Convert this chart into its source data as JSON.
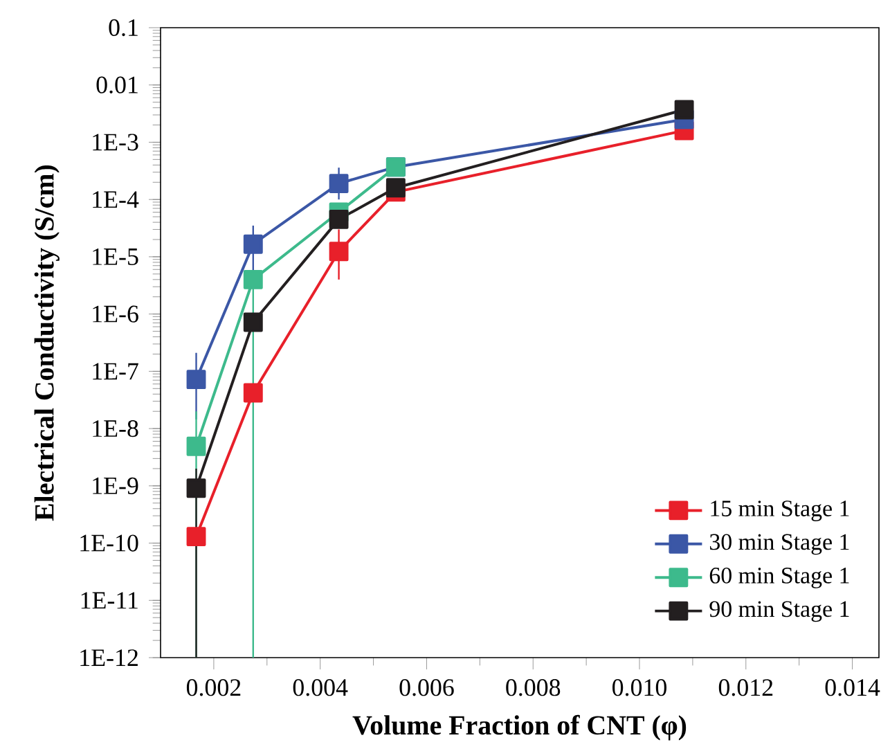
{
  "chart_data": {
    "type": "line",
    "xlabel": "Volume Fraction of CNT (φ)",
    "ylabel": "Electrical Conductivity (S/cm)",
    "x": [
      0.00167,
      0.00274,
      0.00435,
      0.00542,
      0.01084
    ],
    "series": [
      {
        "name": "15 min Stage 1",
        "color": "#e8202a",
        "values": [
          1.3e-10,
          4.2e-08,
          1.24e-05,
          0.000135,
          0.0016
        ],
        "errors": [
          null,
          null,
          [
            4e-06,
            3e-05
          ],
          null,
          null
        ]
      },
      {
        "name": "30 min Stage 1",
        "color": "#3b57a6",
        "values": [
          7.2e-08,
          1.66e-05,
          0.00019,
          0.00037,
          0.0025
        ],
        "errors": [
          [
            1.45e-08,
            2.1e-07
          ],
          [
            5e-06,
            3.5e-05
          ],
          [
            0.0001,
            0.00036
          ],
          null,
          null
        ]
      },
      {
        "name": "60 min Stage 1",
        "color": "#3dba8c",
        "values": [
          4.9e-09,
          4e-06,
          6e-05,
          0.00037,
          null
        ],
        "errors": [
          [
            1e-12,
            2e-08
          ],
          [
            1e-12,
            4e-06
          ],
          null,
          null,
          null
        ]
      },
      {
        "name": "90 min Stage 1",
        "color": "#231f20",
        "values": [
          9.1e-10,
          7.2e-07,
          4.5e-05,
          0.00016,
          0.0037
        ],
        "errors": [
          [
            1e-12,
            2e-09
          ],
          null,
          null,
          null,
          null
        ]
      }
    ],
    "xlim": [
      0.001,
      0.0145
    ],
    "xticks": [
      0.002,
      0.004,
      0.006,
      0.008,
      {
        "value": 0.01,
        "label": "0.010"
      },
      0.012,
      0.014
    ],
    "ylim": [
      1e-12,
      0.1
    ],
    "yticks": [
      {
        "value": 1e-12,
        "label": "1E-12"
      },
      {
        "value": 1e-11,
        "label": "1E-11"
      },
      {
        "value": 1e-10,
        "label": "1E-10"
      },
      {
        "value": 1e-09,
        "label": "1E-9"
      },
      {
        "value": 1e-08,
        "label": "1E-8"
      },
      {
        "value": 1e-07,
        "label": "1E-7"
      },
      {
        "value": 1e-06,
        "label": "1E-6"
      },
      {
        "value": 1e-05,
        "label": "1E-5"
      },
      {
        "value": 0.0001,
        "label": "1E-4"
      },
      {
        "value": 0.001,
        "label": "1E-3"
      },
      {
        "value": 0.01,
        "label": "0.01"
      },
      {
        "value": 0.1,
        "label": "0.1"
      }
    ],
    "log": "y",
    "grid": false,
    "legend": "bottom right",
    "marker": "square",
    "line_style": "solid"
  }
}
